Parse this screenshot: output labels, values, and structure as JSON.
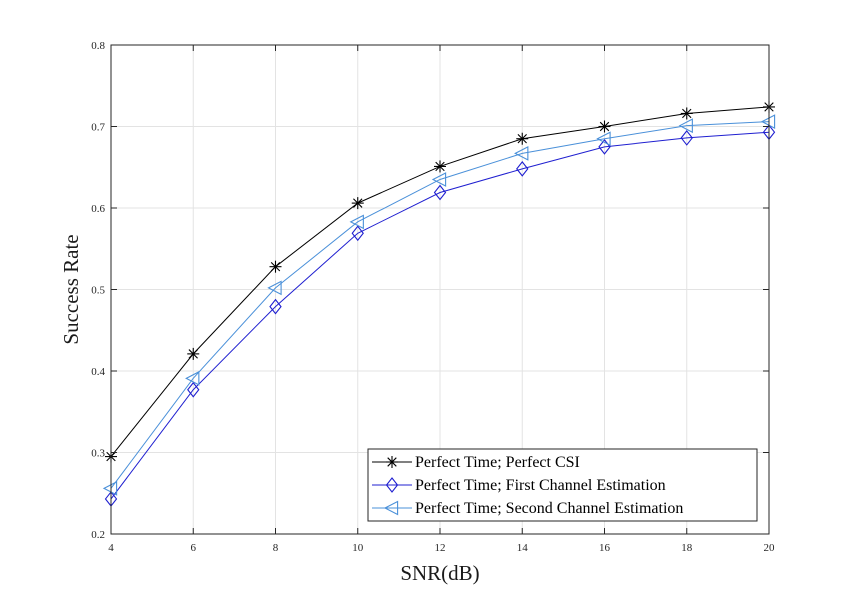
{
  "chart_data": {
    "type": "line",
    "xlabel": "SNR(dB)",
    "ylabel": "Success Rate",
    "xlim": [
      4,
      20
    ],
    "ylim": [
      0.2,
      0.8
    ],
    "xticks": [
      "4",
      "6",
      "8",
      "10",
      "12",
      "14",
      "16",
      "18",
      "20"
    ],
    "yticks": [
      "0.2",
      "0.3",
      "0.4",
      "0.5",
      "0.6",
      "0.7",
      "0.8"
    ],
    "grid": true,
    "legend_position": "bottom-right",
    "x": [
      4,
      6,
      8,
      10,
      12,
      14,
      16,
      18,
      20
    ],
    "series": [
      {
        "name": "Perfect Time; Perfect CSI",
        "marker": "asterisk",
        "color": "#000000",
        "values": [
          0.295,
          0.421,
          0.528,
          0.606,
          0.651,
          0.685,
          0.7,
          0.716,
          0.724
        ]
      },
      {
        "name": "Perfect Time; First Channel Estimation",
        "marker": "diamond",
        "color": "#1f1fd0",
        "values": [
          0.243,
          0.377,
          0.479,
          0.569,
          0.619,
          0.648,
          0.675,
          0.686,
          0.693
        ]
      },
      {
        "name": "Perfect Time; Second Channel Estimation",
        "marker": "triangle-left",
        "color": "#4a90d9",
        "values": [
          0.256,
          0.391,
          0.502,
          0.583,
          0.635,
          0.667,
          0.685,
          0.701,
          0.706
        ]
      }
    ]
  }
}
